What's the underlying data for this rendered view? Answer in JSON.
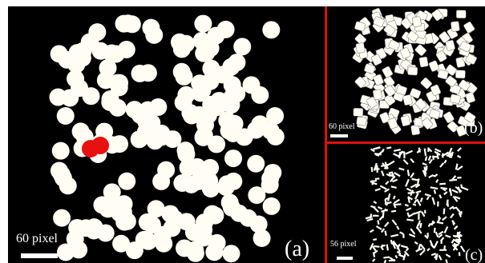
{
  "panels": [
    {
      "scale_label": "60 pixel",
      "label": "(a)"
    },
    {
      "scale_label": "60 pixel",
      "label": "(b)"
    },
    {
      "scale_label": "56 pixel",
      "label": "(c)"
    }
  ]
}
